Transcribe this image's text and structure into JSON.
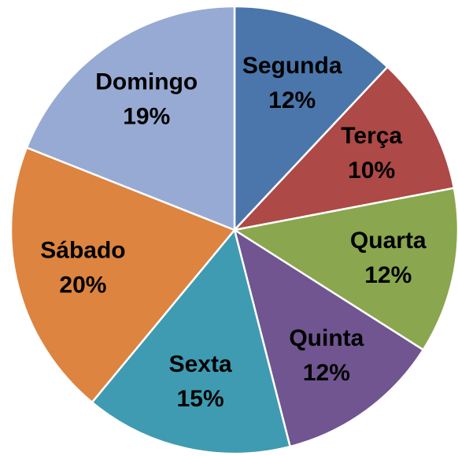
{
  "chart_data": {
    "type": "pie",
    "categories": [
      "Segunda",
      "Terça",
      "Quarta",
      "Quinta",
      "Sexta",
      "Sábado",
      "Domingo"
    ],
    "values": [
      12,
      10,
      12,
      12,
      15,
      20,
      19
    ],
    "value_labels": [
      "12%",
      "10%",
      "12%",
      "12%",
      "15%",
      "20%",
      "19%"
    ],
    "colors": [
      "#4a76ab",
      "#ad4946",
      "#8aa64e",
      "#705590",
      "#3f9bb1",
      "#dc8440",
      "#97aad3"
    ]
  }
}
